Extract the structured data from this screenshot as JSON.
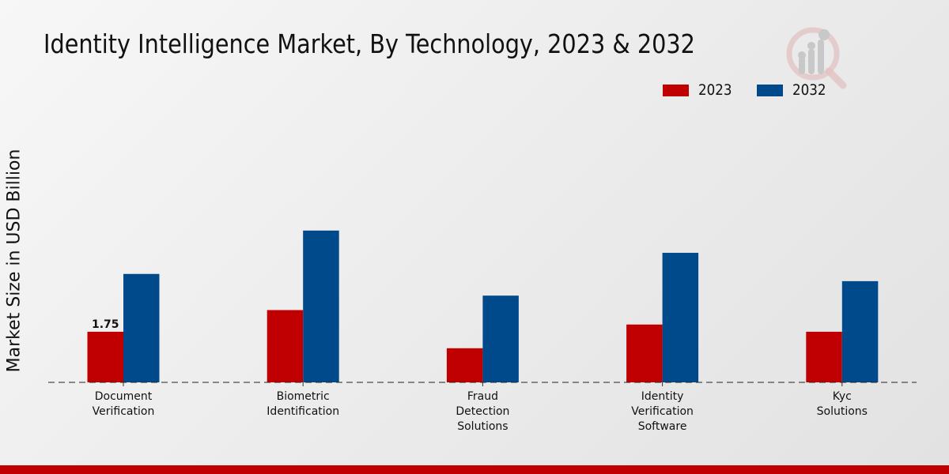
{
  "chart_data": {
    "type": "bar",
    "title": "Identity Intelligence Market, By Technology, 2023 & 2032",
    "xlabel": "",
    "ylabel": "Market Size in USD Billion",
    "ylim": [
      0,
      6.5
    ],
    "grid": false,
    "legend_position": "top-right",
    "categories": [
      [
        "Document",
        "Verification"
      ],
      [
        "Biometric",
        "Identification"
      ],
      [
        "Fraud",
        "Detection",
        "Solutions"
      ],
      [
        "Identity",
        "Verification",
        "Software"
      ],
      [
        "Kyc",
        "Solutions"
      ]
    ],
    "series": [
      {
        "name": "2023",
        "color": "#c00000",
        "values": [
          1.75,
          2.5,
          1.18,
          2.0,
          1.75
        ]
      },
      {
        "name": "2032",
        "color": "#004a8c",
        "values": [
          3.75,
          5.25,
          3.0,
          4.48,
          3.5
        ]
      }
    ],
    "annotations": [
      {
        "series": 0,
        "category": 0,
        "text": "1.75"
      }
    ]
  },
  "legend": [
    {
      "label": "2023",
      "color": "#c00000"
    },
    {
      "label": "2032",
      "color": "#004a8c"
    }
  ],
  "footer_color": "#c00000"
}
